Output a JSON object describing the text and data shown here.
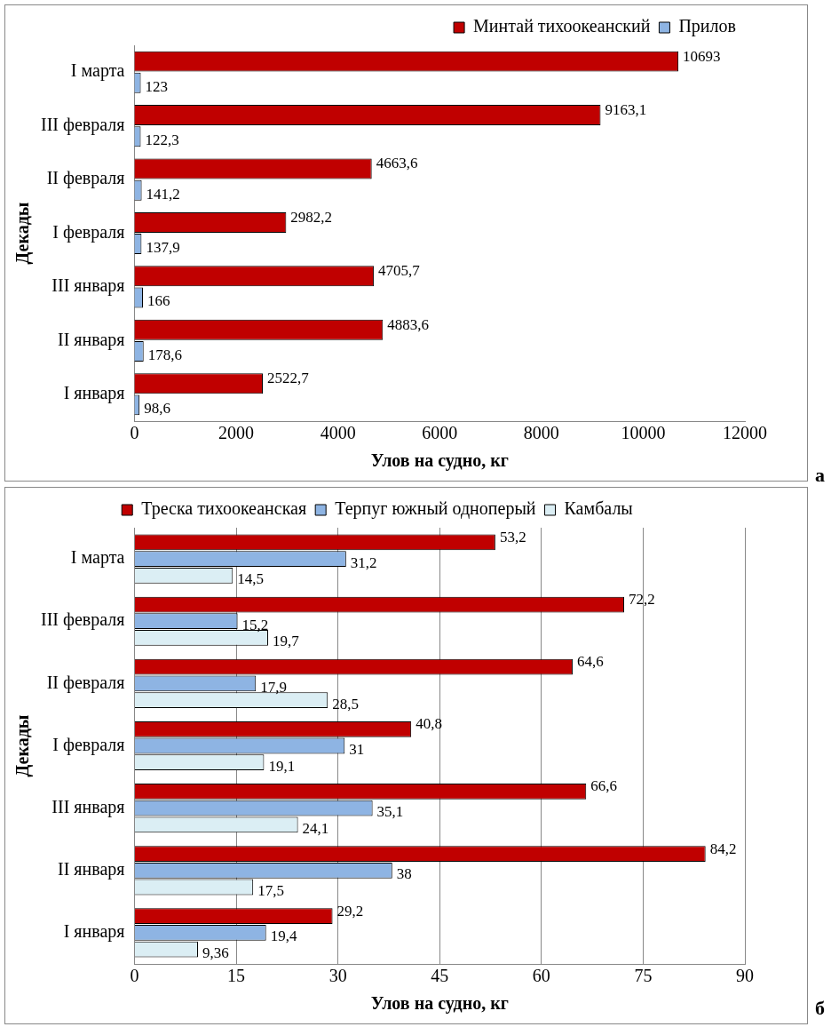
{
  "chart_data": [
    {
      "type": "bar",
      "orientation": "horizontal",
      "xlabel": "Улов на судно, кг",
      "ylabel": "Декады",
      "categories": [
        "I марта",
        "III февраля",
        "II февраля",
        "I февраля",
        "III января",
        "II января",
        "I января"
      ],
      "series": [
        {
          "name": "Минтай тихоокеанский",
          "color": "#c00000",
          "values": [
            10693,
            9163.1,
            4663.6,
            2982.2,
            4705.7,
            4883.6,
            2522.7
          ],
          "value_labels": [
            "10693",
            "9163,1",
            "4663,6",
            "2982,2",
            "4705,7",
            "4883,6",
            "2522,7"
          ]
        },
        {
          "name": "Прилов",
          "color": "#8eb4e3",
          "values": [
            123,
            122.3,
            141.2,
            137.9,
            166,
            178.6,
            98.6
          ],
          "value_labels": [
            "123",
            "122,3",
            "141,2",
            "137,9",
            "166",
            "178,6",
            "98,6"
          ]
        }
      ],
      "xlim": [
        0,
        12000
      ],
      "xticks": [
        0,
        2000,
        4000,
        6000,
        8000,
        10000,
        12000
      ],
      "grid": false,
      "legend": "top",
      "annotations": [
        "а"
      ]
    },
    {
      "type": "bar",
      "orientation": "horizontal",
      "xlabel": "Улов на судно, кг",
      "ylabel": "Декады",
      "categories": [
        "I марта",
        "III февраля",
        "II февраля",
        "I февраля",
        "III января",
        "II января",
        "I января"
      ],
      "series": [
        {
          "name": "Треска тихоокеанская",
          "color": "#c00000",
          "values": [
            53.2,
            72.2,
            64.6,
            40.8,
            66.6,
            84.2,
            29.2
          ],
          "value_labels": [
            "53,2",
            "72,2",
            "64,6",
            "40,8",
            "66,6",
            "84,2",
            "29,2"
          ]
        },
        {
          "name": "Терпуг южный одноперый",
          "color": "#8eb4e3",
          "values": [
            31.2,
            15.2,
            17.9,
            31,
            35.1,
            38,
            19.4
          ],
          "value_labels": [
            "31,2",
            "15,2",
            "17,9",
            "31",
            "35,1",
            "38",
            "19,4"
          ]
        },
        {
          "name": "Камбалы",
          "color": "#dbeef4",
          "values": [
            14.5,
            19.7,
            28.5,
            19.1,
            24.1,
            17.5,
            9.36
          ],
          "value_labels": [
            "14,5",
            "19,7",
            "28,5",
            "19,1",
            "24,1",
            "17,5",
            "9,36"
          ]
        }
      ],
      "xlim": [
        0,
        90
      ],
      "xticks": [
        0,
        15,
        30,
        45,
        60,
        75,
        90
      ],
      "grid": "x",
      "legend": "top",
      "annotations": [
        "б"
      ]
    }
  ]
}
